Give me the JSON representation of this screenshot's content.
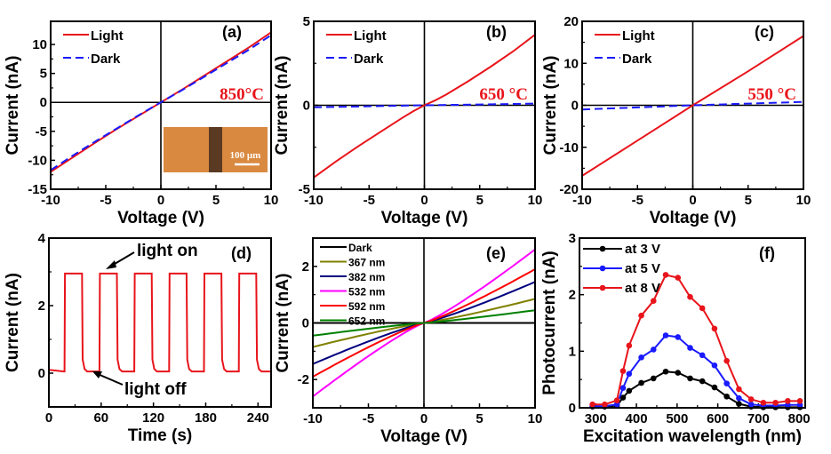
{
  "chart_data": [
    {
      "id": "a",
      "type": "line",
      "panel_label": "(a)",
      "annotation": "850°C",
      "xlabel": "Voltage (V)",
      "ylabel": "Current (nA)",
      "xlim": [
        -10,
        10
      ],
      "ylim": [
        -15,
        14
      ],
      "xticks": [
        -10,
        -5,
        0,
        5,
        10
      ],
      "yticks": [
        -15,
        -10,
        -5,
        0,
        5,
        10
      ],
      "zero_lines": true,
      "legend": "top-left",
      "inset": {
        "description": "optical micrograph",
        "scale_bar": "100 μm"
      },
      "series": [
        {
          "name": "Light",
          "style": "solid",
          "color": "#e8141b",
          "x": [
            -10,
            -8,
            -6,
            -4,
            -2,
            0,
            2,
            4,
            6,
            8,
            10
          ],
          "y": [
            -12,
            -9.5,
            -7,
            -4.6,
            -2.3,
            0,
            2.3,
            4.7,
            7.1,
            9.5,
            12.1
          ]
        },
        {
          "name": "Dark",
          "style": "dashed",
          "color": "#1a1aff",
          "x": [
            -10,
            -8,
            -6,
            -4,
            -2,
            0,
            2,
            4,
            6,
            8,
            10
          ],
          "y": [
            -11.7,
            -9.2,
            -6.8,
            -4.5,
            -2.2,
            0,
            2.2,
            4.5,
            6.8,
            9.1,
            11.6
          ]
        }
      ]
    },
    {
      "id": "b",
      "type": "line",
      "panel_label": "(b)",
      "annotation": "650 °C",
      "xlabel": "Voltage (V)",
      "ylabel": "Current (nA)",
      "xlim": [
        -10,
        10
      ],
      "ylim": [
        -5,
        5
      ],
      "xticks": [
        -10,
        -5,
        0,
        5,
        10
      ],
      "yticks": [
        -5,
        0,
        5
      ],
      "zero_lines": true,
      "legend": "top-left",
      "series": [
        {
          "name": "Light",
          "style": "solid",
          "color": "#e8141b",
          "x": [
            -10,
            -8,
            -6,
            -4,
            -2,
            -1,
            0,
            1,
            2,
            4,
            6,
            8,
            10
          ],
          "y": [
            -4.3,
            -3.35,
            -2.45,
            -1.6,
            -0.75,
            -0.35,
            0,
            0.3,
            0.65,
            1.45,
            2.3,
            3.2,
            4.2
          ]
        },
        {
          "name": "Dark",
          "style": "dashed",
          "color": "#1a1aff",
          "x": [
            -10,
            -5,
            0,
            5,
            10
          ],
          "y": [
            -0.12,
            -0.06,
            0,
            0.05,
            0.1
          ]
        }
      ]
    },
    {
      "id": "c",
      "type": "line",
      "panel_label": "(c)",
      "annotation": "550 °C",
      "xlabel": "Voltage (V)",
      "ylabel": "Current (nA)",
      "xlim": [
        -10,
        10
      ],
      "ylim": [
        -20,
        20
      ],
      "xticks": [
        -10,
        -5,
        0,
        5,
        10
      ],
      "yticks": [
        -20,
        -10,
        0,
        10,
        20
      ],
      "zero_lines": true,
      "legend": "top-left",
      "series": [
        {
          "name": "Light",
          "style": "solid",
          "color": "#e8141b",
          "x": [
            -10,
            -5,
            0,
            5,
            10
          ],
          "y": [
            -16.8,
            -8.4,
            0,
            8.1,
            16.5
          ]
        },
        {
          "name": "Dark",
          "style": "dashed",
          "color": "#1a1aff",
          "x": [
            -10,
            -5,
            0,
            5,
            10
          ],
          "y": [
            -1.0,
            -0.5,
            0,
            0.4,
            0.8
          ]
        }
      ]
    },
    {
      "id": "d",
      "type": "line",
      "panel_label": "(d)",
      "xlabel": "Time (s)",
      "ylabel": "Current (nA)",
      "xlim": [
        0,
        255
      ],
      "ylim": [
        -1,
        4
      ],
      "xticks": [
        0,
        60,
        120,
        180,
        240
      ],
      "yticks": [
        0,
        2,
        4
      ],
      "annotations": [
        "light on",
        "light off"
      ],
      "series": [
        {
          "name": "Photoresponse",
          "style": "solid",
          "color": "#e8141b",
          "on_level": 2.95,
          "off_level": 0.05,
          "on_intervals": [
            [
              18,
              38
            ],
            [
              58,
              78
            ],
            [
              98,
              118
            ],
            [
              138,
              158
            ],
            [
              178,
              198
            ],
            [
              218,
              238
            ]
          ]
        }
      ]
    },
    {
      "id": "e",
      "type": "line",
      "panel_label": "(e)",
      "xlabel": "Voltage (V)",
      "ylabel": "Current (nA)",
      "xlim": [
        -10,
        10
      ],
      "ylim": [
        -3,
        3
      ],
      "xticks": [
        -10,
        -5,
        0,
        5,
        10
      ],
      "yticks": [
        -2,
        0,
        2
      ],
      "zero_lines": true,
      "legend": "top-left",
      "series": [
        {
          "name": "Dark",
          "color": "#000000",
          "y_at_minus10": 0,
          "y_at_plus10": 0
        },
        {
          "name": "367 nm",
          "color": "#808000",
          "y_at_minus10": -0.85,
          "y_at_plus10": 0.85
        },
        {
          "name": "382 nm",
          "color": "#000080",
          "y_at_minus10": -1.45,
          "y_at_plus10": 1.45
        },
        {
          "name": "532 nm",
          "color": "#ff00ff",
          "y_at_minus10": -2.6,
          "y_at_plus10": 2.6
        },
        {
          "name": "592 nm",
          "color": "#ff0000",
          "y_at_minus10": -1.9,
          "y_at_plus10": 1.9
        },
        {
          "name": "652 nm",
          "color": "#008000",
          "y_at_minus10": -0.45,
          "y_at_plus10": 0.45
        }
      ]
    },
    {
      "id": "f",
      "type": "line",
      "panel_label": "(f)",
      "xlabel": "Excitation wavelength (nm)",
      "ylabel": "Photocurrent (nA)",
      "xlim": [
        260,
        815
      ],
      "ylim": [
        0,
        3
      ],
      "xticks": [
        300,
        400,
        500,
        600,
        700,
        800
      ],
      "yticks": [
        0,
        1,
        2,
        3
      ],
      "legend": "top-left",
      "x": [
        292,
        322,
        352,
        367,
        382,
        412,
        442,
        472,
        502,
        532,
        562,
        592,
        622,
        652,
        682,
        712,
        742,
        772,
        802
      ],
      "series": [
        {
          "name": "at 3 V",
          "color": "#000000",
          "markers": true,
          "y": [
            0.02,
            0.02,
            0.04,
            0.18,
            0.3,
            0.44,
            0.52,
            0.64,
            0.62,
            0.52,
            0.47,
            0.36,
            0.2,
            0.07,
            0.02,
            0.01,
            0.01,
            0.01,
            0.01
          ]
        },
        {
          "name": "at 5 V",
          "color": "#1a1aff",
          "markers": true,
          "y": [
            0.03,
            0.03,
            0.06,
            0.35,
            0.6,
            0.89,
            1.03,
            1.28,
            1.25,
            1.06,
            0.93,
            0.75,
            0.43,
            0.17,
            0.06,
            0.04,
            0.04,
            0.05,
            0.05
          ]
        },
        {
          "name": "at 8 V",
          "color": "#e8141b",
          "markers": true,
          "y": [
            0.06,
            0.06,
            0.13,
            0.65,
            1.1,
            1.63,
            1.89,
            2.35,
            2.3,
            1.96,
            1.76,
            1.4,
            0.83,
            0.33,
            0.15,
            0.09,
            0.09,
            0.12,
            0.12
          ]
        }
      ]
    }
  ]
}
